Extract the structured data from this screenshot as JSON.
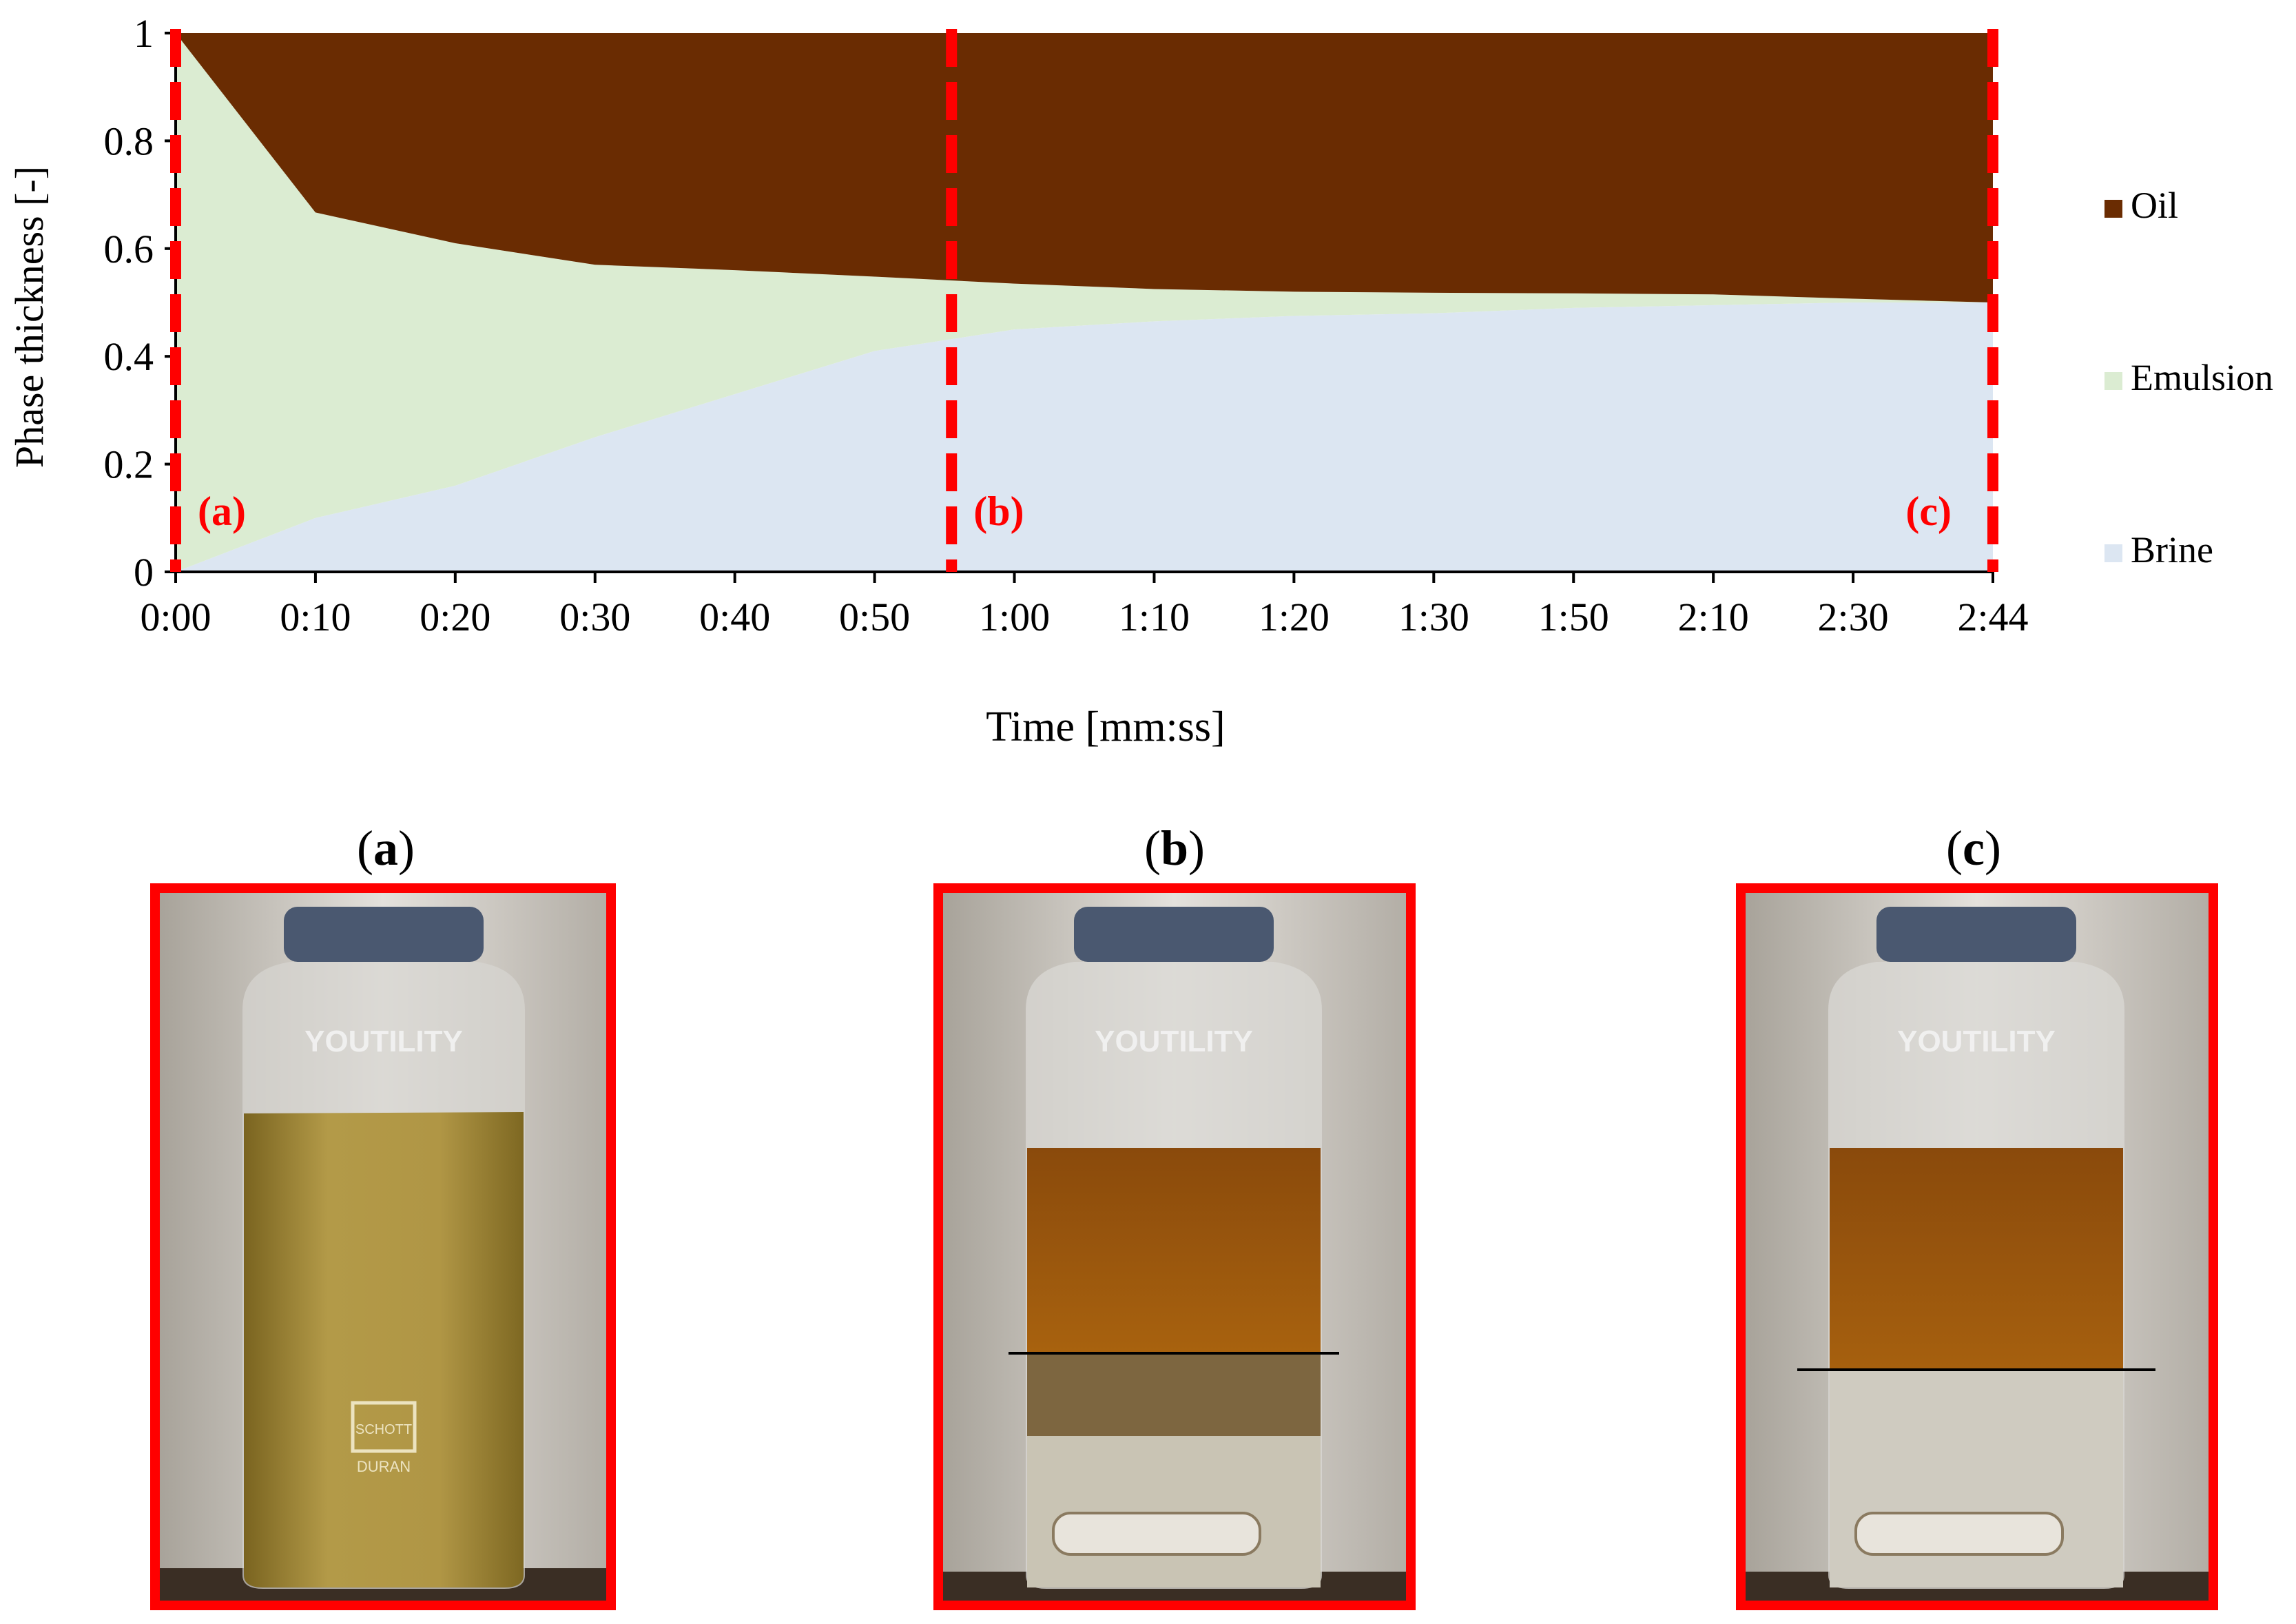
{
  "chart_data": {
    "type": "area",
    "stacked": true,
    "xlabel": "Time [mm:ss]",
    "ylabel": "Phase thickness [-]",
    "ylim": [
      0,
      1
    ],
    "yticks": [
      "0",
      "0.2",
      "0.4",
      "0.6",
      "0.8",
      "1"
    ],
    "x": [
      "0:00",
      "0:10",
      "0:20",
      "0:30",
      "0:40",
      "0:50",
      "1:00",
      "1:10",
      "1:20",
      "1:30",
      "1:50",
      "2:10",
      "2:30",
      "2:44"
    ],
    "series": [
      {
        "name": "Brine",
        "color": "#dce6f2",
        "values": [
          0.0,
          0.1,
          0.16,
          0.25,
          0.33,
          0.41,
          0.45,
          0.465,
          0.475,
          0.48,
          0.49,
          0.495,
          0.5,
          0.5
        ]
      },
      {
        "name": "Emulsion",
        "color": "#dbecd2",
        "values": [
          1.0,
          0.567,
          0.45,
          0.32,
          0.23,
          0.138,
          0.085,
          0.06,
          0.045,
          0.038,
          0.027,
          0.02,
          0.007,
          0.0
        ]
      },
      {
        "name": "Oil",
        "color": "#6a2c02",
        "values": [
          0.0,
          0.333,
          0.39,
          0.43,
          0.44,
          0.452,
          0.465,
          0.475,
          0.48,
          0.482,
          0.483,
          0.485,
          0.493,
          0.5
        ]
      }
    ],
    "legend_position": "right",
    "markers": [
      {
        "label": "(a)",
        "x_index": 0.0
      },
      {
        "label": "(b)",
        "x_index": 5.55
      },
      {
        "label": "(c)",
        "x_index": 13.0
      }
    ],
    "marker_color": "#ff0000"
  },
  "photos": [
    {
      "label_open": "(",
      "label_letter": "a",
      "label_close": ")",
      "brand_text": "YOUTILITY",
      "logo_top": "SCHOTT",
      "logo_bottom": "DURAN"
    },
    {
      "label_open": "(",
      "label_letter": "b",
      "label_close": ")",
      "brand_text": "YOUTILITY"
    },
    {
      "label_open": "(",
      "label_letter": "c",
      "label_close": ")",
      "brand_text": "YOUTILITY"
    }
  ]
}
